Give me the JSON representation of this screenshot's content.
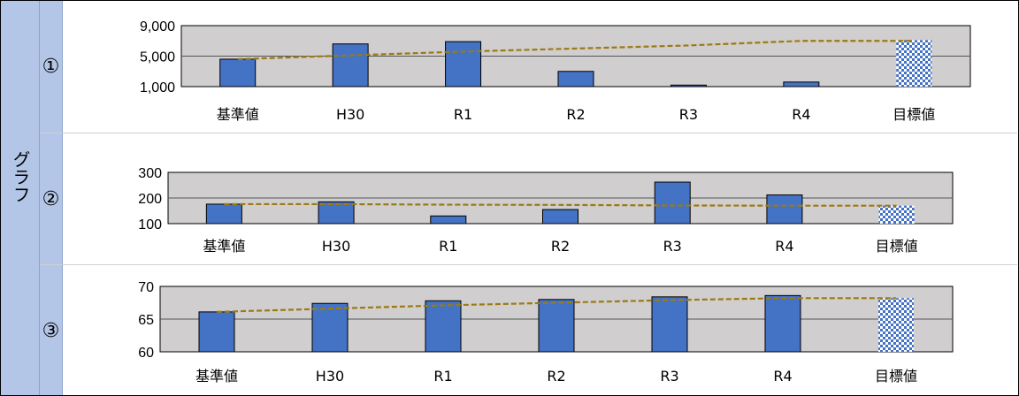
{
  "side_label": "グラフ",
  "colors": {
    "plot_bg": "#d0cece",
    "bar": "#4472c4",
    "bar_border": "#000000",
    "trend": "#9c7a12",
    "target_a": "#4472c4",
    "target_b": "#ffffff",
    "side_bg": "#b4c6e7"
  },
  "chart_data": [
    {
      "id": "1",
      "row_label": "①",
      "type": "bar",
      "categories": [
        "基準値",
        "H30",
        "R1",
        "R2",
        "R3",
        "R4",
        "目標値"
      ],
      "values": [
        4600,
        6600,
        6900,
        3000,
        1200,
        1600,
        7100
      ],
      "trend": [
        4600,
        5100,
        5600,
        6000,
        6400,
        7000,
        7000
      ],
      "target_index": 6,
      "ylim": [
        1000,
        9000
      ],
      "yticks": [
        "9,000",
        "5,000",
        "1,000"
      ],
      "ytick_values": [
        9000,
        5000,
        1000
      ],
      "grid": true,
      "title": "",
      "xlabel": "",
      "ylabel": ""
    },
    {
      "id": "2",
      "row_label": "②",
      "type": "bar",
      "categories": [
        "基準値",
        "H30",
        "R1",
        "R2",
        "R3",
        "R4",
        "目標値"
      ],
      "values": [
        176,
        185,
        130,
        155,
        262,
        212,
        170
      ],
      "trend": [
        176,
        176,
        174,
        173,
        171,
        170,
        170
      ],
      "target_index": 6,
      "ylim": [
        100,
        300
      ],
      "yticks": [
        "300",
        "200",
        "100"
      ],
      "ytick_values": [
        300,
        200,
        100
      ],
      "grid": true,
      "title": "",
      "xlabel": "",
      "ylabel": ""
    },
    {
      "id": "3",
      "row_label": "③",
      "type": "bar",
      "categories": [
        "基準値",
        "H30",
        "R1",
        "R2",
        "R3",
        "R4",
        "目標値"
      ],
      "values": [
        66.1,
        67.4,
        67.8,
        68.0,
        68.4,
        68.6,
        68.2
      ],
      "trend": [
        66.1,
        66.6,
        67.1,
        67.5,
        67.9,
        68.2,
        68.2
      ],
      "target_index": 6,
      "ylim": [
        60,
        70
      ],
      "yticks": [
        "70",
        "65",
        "60"
      ],
      "ytick_values": [
        70,
        65,
        60
      ],
      "grid": true,
      "title": "",
      "xlabel": "",
      "ylabel": ""
    }
  ]
}
